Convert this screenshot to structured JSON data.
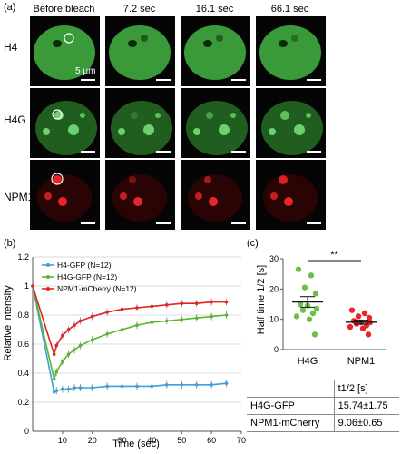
{
  "panel_labels": {
    "a": "(a)",
    "b": "(b)",
    "c": "(c)"
  },
  "microscopy": {
    "headers": [
      "Before bleach",
      "7.2 sec",
      "16.1 sec",
      "66.1 sec"
    ],
    "rows": [
      "H4",
      "H4G",
      "NPM1"
    ],
    "scale_label": "5 μm",
    "colors": {
      "green": "#3fb03f",
      "red": "#e8262a",
      "bleach_circle": "#ffffff"
    }
  },
  "chart_data": [
    {
      "type": "line",
      "xlabel": "Time (sec)",
      "ylabel": "Relative intensity",
      "xlim": [
        0,
        70
      ],
      "ylim": [
        0,
        1.2
      ],
      "xticks": [
        "10",
        "20",
        "30",
        "40",
        "50",
        "60",
        "70"
      ],
      "yticks": [
        "0",
        "0.2",
        "0.4",
        "0.6",
        "0.8",
        "1",
        "1.2"
      ],
      "grid": "horizontal",
      "legend": "top-left",
      "series": [
        {
          "name": "H4-GFP (N=12)",
          "color": "#3aa0dc",
          "x": [
            0,
            7.2,
            8,
            10,
            12,
            14,
            16,
            20,
            25,
            30,
            35,
            40,
            45,
            50,
            55,
            60,
            65
          ],
          "y": [
            1.0,
            0.27,
            0.28,
            0.29,
            0.29,
            0.3,
            0.3,
            0.3,
            0.31,
            0.31,
            0.31,
            0.31,
            0.32,
            0.32,
            0.32,
            0.32,
            0.33
          ]
        },
        {
          "name": "H4G-GFP (N=12)",
          "color": "#5cb531",
          "x": [
            0,
            7.2,
            8,
            10,
            12,
            14,
            16,
            20,
            25,
            30,
            35,
            40,
            45,
            50,
            55,
            60,
            65
          ],
          "y": [
            1.0,
            0.36,
            0.41,
            0.48,
            0.53,
            0.56,
            0.59,
            0.63,
            0.67,
            0.7,
            0.73,
            0.75,
            0.76,
            0.77,
            0.78,
            0.79,
            0.8
          ]
        },
        {
          "name": "NPM1-mCherry (N=12)",
          "color": "#e02424",
          "x": [
            0,
            7.2,
            8,
            10,
            12,
            14,
            16,
            20,
            25,
            30,
            35,
            40,
            45,
            50,
            55,
            60,
            65
          ],
          "y": [
            1.0,
            0.53,
            0.59,
            0.66,
            0.7,
            0.73,
            0.76,
            0.79,
            0.82,
            0.84,
            0.85,
            0.86,
            0.87,
            0.88,
            0.88,
            0.89,
            0.89
          ]
        }
      ]
    },
    {
      "type": "scatter",
      "ylabel": "Half time 1/2 [s]",
      "categories": [
        "H4G",
        "NPM1"
      ],
      "ylim": [
        0,
        30
      ],
      "yticks": [
        "0",
        "10",
        "20",
        "30"
      ],
      "annotation": "**",
      "series": [
        {
          "name": "H4G",
          "color": "#6cc04a",
          "mean": 15.74,
          "sem": 1.75,
          "values": [
            26.5,
            24.5,
            20.5,
            18.5,
            15.0,
            14.5,
            13.5,
            13.0,
            12.0,
            11.0,
            10.0,
            5.0
          ]
        },
        {
          "name": "NPM1",
          "color": "#e8262a",
          "mean": 9.06,
          "sem": 0.65,
          "values": [
            13.0,
            12.0,
            11.0,
            10.5,
            9.5,
            9.0,
            9.0,
            8.5,
            8.0,
            7.5,
            7.0,
            5.0
          ]
        }
      ]
    }
  ],
  "table": {
    "header": "t1/2 [s]",
    "rows": [
      {
        "label": "H4G-GFP",
        "value": "15.74±1.75"
      },
      {
        "label": "NPM1-mCherry",
        "value": "9.06±0.65"
      }
    ]
  }
}
